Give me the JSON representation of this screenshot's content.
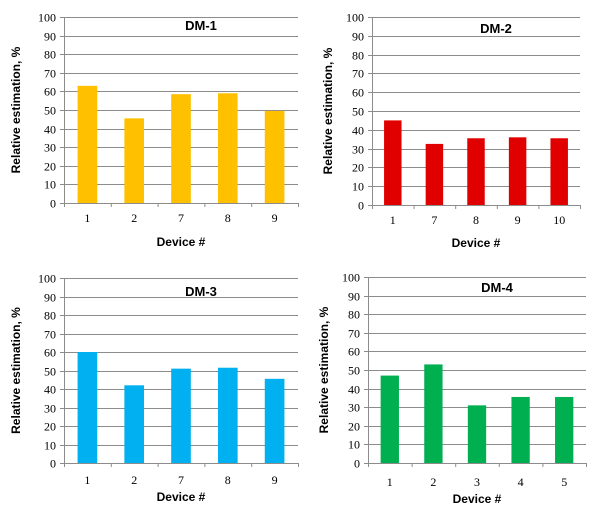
{
  "chart_data": [
    {
      "type": "bar",
      "title": "DM-1",
      "xlabel": "Device #",
      "ylabel": "Relative estimation, %",
      "ylim": [
        0,
        100
      ],
      "yticks": [
        0,
        10,
        20,
        30,
        40,
        50,
        60,
        70,
        80,
        90,
        100
      ],
      "grid": true,
      "color": "#FFC000",
      "categories": [
        "1",
        "2",
        "7",
        "8",
        "9"
      ],
      "values": [
        63,
        45.5,
        58.5,
        59,
        49.5
      ]
    },
    {
      "type": "bar",
      "title": "DM-2",
      "xlabel": "Device #",
      "ylabel": "Relative estimation, %",
      "ylim": [
        0,
        100
      ],
      "yticks": [
        0,
        10,
        20,
        30,
        40,
        50,
        60,
        70,
        80,
        90,
        100
      ],
      "grid": true,
      "color": "#E00000",
      "categories": [
        "1",
        "7",
        "8",
        "9",
        "10"
      ],
      "values": [
        45,
        32.5,
        35.5,
        36,
        35.5
      ]
    },
    {
      "type": "bar",
      "title": "DM-3",
      "xlabel": "Device #",
      "ylabel": "Relative estimation, %",
      "ylim": [
        0,
        100
      ],
      "yticks": [
        0,
        10,
        20,
        30,
        40,
        50,
        60,
        70,
        80,
        90,
        100
      ],
      "grid": true,
      "color": "#00B0F0",
      "categories": [
        "1",
        "2",
        "7",
        "8",
        "9"
      ],
      "values": [
        60,
        42,
        51,
        51.5,
        45.5
      ]
    },
    {
      "type": "bar",
      "title": "DM-4",
      "xlabel": "Device #",
      "ylabel": "Relative estimation, %",
      "ylim": [
        0,
        100
      ],
      "yticks": [
        0,
        10,
        20,
        30,
        40,
        50,
        60,
        70,
        80,
        90,
        100
      ],
      "grid": true,
      "color": "#00B050",
      "categories": [
        "1",
        "2",
        "3",
        "4",
        "5"
      ],
      "values": [
        47,
        53,
        31,
        35.5,
        35.5
      ]
    }
  ]
}
